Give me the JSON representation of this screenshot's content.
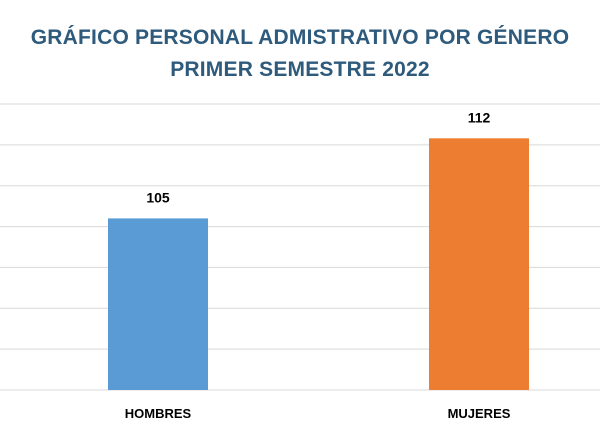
{
  "chart_data": {
    "type": "bar",
    "title": "GRÁFICO PERSONAL ADMISTRATIVO POR GÉNERO",
    "subtitle": "PRIMER SEMESTRE 2022",
    "categories": [
      "HOMBRES",
      "MUJERES"
    ],
    "values": [
      105,
      112
    ],
    "data_labels": [
      "105",
      "112"
    ],
    "colors": [
      "#5b9bd5",
      "#ed7d31"
    ],
    "ylim": [
      90,
      115
    ],
    "grid": true,
    "legend": "none"
  }
}
